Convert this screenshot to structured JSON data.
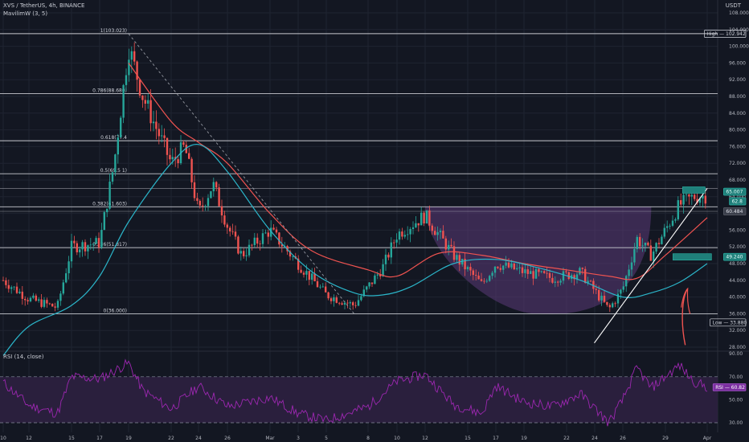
{
  "header": {
    "symbol": "XVS / TetherUS, 4h, BINANCE",
    "ma_legend": "MavilimW (3, 5)",
    "rsi_legend": "RSI (14, close)",
    "currency": "USDT"
  },
  "colors": {
    "background": "#131722",
    "grid": "#1f2431",
    "up_candle": "#26a69a",
    "down_candle": "#ef5350",
    "ma_red": "#ef5350",
    "ma_teal": "#2bb5c9",
    "rsi_line": "#9c27b0",
    "rsi_band": "#2a1f3d",
    "cup_fill": "#5b3a78",
    "fib_line": "#c7c9cf",
    "trend_line": "#ffffff",
    "arrow": "#ef5350"
  },
  "chart_data": [
    {
      "type": "candlestick",
      "title": "XVS / TetherUS, 4h, BINANCE",
      "y_unit": "USDT",
      "ylim": [
        28,
        108
      ],
      "y_ticks": [
        28,
        32,
        36,
        40,
        44,
        48,
        52,
        56,
        60,
        64,
        68,
        72,
        76,
        80,
        84,
        88,
        92,
        96,
        100,
        104,
        108
      ],
      "x_ticks": [
        "10",
        "12",
        "15",
        "17",
        "19",
        "22",
        "24",
        "26",
        "Mar",
        "3",
        "5",
        "8",
        "10",
        "12",
        "15",
        "17",
        "19",
        "22",
        "24",
        "26",
        "29",
        "Apr"
      ],
      "grid": true,
      "approximate_close_path": [
        {
          "date": "Feb 10",
          "close": 44.0
        },
        {
          "date": "Feb 12",
          "close": 39.5
        },
        {
          "date": "Feb 14",
          "close": 37.5
        },
        {
          "date": "Feb 15",
          "close": 52.0
        },
        {
          "date": "Feb 17",
          "close": 53.0
        },
        {
          "date": "Feb 18",
          "close": 72.0
        },
        {
          "date": "Feb 19",
          "close": 100.0
        },
        {
          "date": "Feb 20",
          "close": 88.0
        },
        {
          "date": "Feb 22",
          "close": 72.0
        },
        {
          "date": "Feb 23",
          "close": 76.0
        },
        {
          "date": "Feb 24",
          "close": 60.0
        },
        {
          "date": "Feb 25",
          "close": 67.0
        },
        {
          "date": "Feb 26",
          "close": 57.0
        },
        {
          "date": "Feb 27",
          "close": 50.0
        },
        {
          "date": "Mar 1",
          "close": 56.0
        },
        {
          "date": "Mar 3",
          "close": 48.0
        },
        {
          "date": "Mar 5",
          "close": 40.5
        },
        {
          "date": "Mar 7",
          "close": 38.0
        },
        {
          "date": "Mar 9",
          "close": 47.0
        },
        {
          "date": "Mar 10",
          "close": 55.0
        },
        {
          "date": "Mar 12",
          "close": 59.5
        },
        {
          "date": "Mar 14",
          "close": 50.0
        },
        {
          "date": "Mar 16",
          "close": 43.0
        },
        {
          "date": "Mar 17",
          "close": 48.0
        },
        {
          "date": "Mar 19",
          "close": 46.0
        },
        {
          "date": "Mar 21",
          "close": 44.5
        },
        {
          "date": "Mar 23",
          "close": 46.0
        },
        {
          "date": "Mar 25",
          "close": 37.0
        },
        {
          "date": "Mar 26",
          "close": 42.0
        },
        {
          "date": "Mar 27",
          "close": 54.0
        },
        {
          "date": "Mar 28",
          "close": 50.0
        },
        {
          "date": "Mar 30",
          "close": 62.0
        },
        {
          "date": "Mar 31",
          "close": 64.0
        },
        {
          "date": "Apr 1",
          "close": 64.3
        }
      ],
      "fib_levels": [
        {
          "ratio": "1",
          "price": 103.023,
          "label": "1(103.023)"
        },
        {
          "ratio": "0.786",
          "price": 88.68,
          "label": "0.786(88.680)"
        },
        {
          "ratio": "0.618",
          "price": 77.4,
          "label": "0.618(77.4"
        },
        {
          "ratio": "0.5",
          "price": 69.5,
          "label": "0.5(69.5 1)"
        },
        {
          "ratio": "0.382",
          "price": 61.603,
          "label": "0.382(61.603)"
        },
        {
          "ratio": "0.236",
          "price": 51.817,
          "label": "0.236(51.817)"
        },
        {
          "ratio": "0",
          "price": 36.0,
          "label": "0(36.000)"
        }
      ],
      "extra_levels": [
        66.0,
        60.5
      ],
      "price_tags": [
        {
          "label": "High",
          "value": "102.942",
          "price": 103.0,
          "style": "outline"
        },
        {
          "label": "",
          "value": "65.007",
          "price": 65.2,
          "style": "teal"
        },
        {
          "label": "",
          "value": "62.8",
          "price": 62.9,
          "style": "teal"
        },
        {
          "label": "",
          "value": "60.484",
          "price": 60.5,
          "style": "gray"
        },
        {
          "label": "",
          "value": "49.240",
          "price": 49.6,
          "style": "teal"
        },
        {
          "label": "Low",
          "value": "33.880",
          "price": 33.9,
          "style": "outline"
        }
      ],
      "ma_red_path": [
        {
          "date": "Feb 19",
          "value": 96.0
        },
        {
          "date": "Feb 22",
          "value": 82.0
        },
        {
          "date": "Feb 24",
          "value": 77.0
        },
        {
          "date": "Feb 26",
          "value": 72.0
        },
        {
          "date": "Mar 1",
          "value": 60.0
        },
        {
          "date": "Mar 4",
          "value": 51.0
        },
        {
          "date": "Mar 8",
          "value": 46.5
        },
        {
          "date": "Mar 10",
          "value": 45.0
        },
        {
          "date": "Mar 13",
          "value": 50.5
        },
        {
          "date": "Mar 16",
          "value": 50.0
        },
        {
          "date": "Mar 19",
          "value": 48.0
        },
        {
          "date": "Mar 22",
          "value": 46.5
        },
        {
          "date": "Mar 25",
          "value": 45.0
        },
        {
          "date": "Mar 27",
          "value": 44.5
        },
        {
          "date": "Mar 29",
          "value": 50.0
        },
        {
          "date": "Apr 1",
          "value": 59.0
        }
      ],
      "ma_teal_path": [
        {
          "date": "Feb 10",
          "value": 26.0
        },
        {
          "date": "Feb 12",
          "value": 33.0
        },
        {
          "date": "Feb 15",
          "value": 38.0
        },
        {
          "date": "Feb 17",
          "value": 45.0
        },
        {
          "date": "Feb 19",
          "value": 58.0
        },
        {
          "date": "Feb 22",
          "value": 72.0
        },
        {
          "date": "Feb 24",
          "value": 76.5
        },
        {
          "date": "Feb 26",
          "value": 70.0
        },
        {
          "date": "Mar 1",
          "value": 56.0
        },
        {
          "date": "Mar 4",
          "value": 46.0
        },
        {
          "date": "Mar 7",
          "value": 41.0
        },
        {
          "date": "Mar 9",
          "value": 40.5
        },
        {
          "date": "Mar 11",
          "value": 42.5
        },
        {
          "date": "Mar 14",
          "value": 48.0
        },
        {
          "date": "Mar 17",
          "value": 49.0
        },
        {
          "date": "Mar 20",
          "value": 47.0
        },
        {
          "date": "Mar 23",
          "value": 44.0
        },
        {
          "date": "Mar 26",
          "value": 40.0
        },
        {
          "date": "Mar 28",
          "value": 41.0
        },
        {
          "date": "Mar 30",
          "value": 43.5
        },
        {
          "date": "Apr 1",
          "value": 48.0
        }
      ],
      "cup_pattern": {
        "start": "Mar 12",
        "end": "Mar 28",
        "rim": 61.6,
        "bottom": 36.0
      },
      "descending_trendline": {
        "from": {
          "date": "Feb 19",
          "price": 103.0
        },
        "to": {
          "date": "Mar 7",
          "price": 36.0
        }
      },
      "ascending_trendline": {
        "from": {
          "date": "Mar 25",
          "price": 29.0
        },
        "to": {
          "date": "Apr 1",
          "price": 66.0
        }
      }
    },
    {
      "type": "line",
      "title": "RSI (14, close)",
      "ylim": [
        20,
        90
      ],
      "y_ticks": [
        30,
        50,
        70,
        90
      ],
      "y_tick_labels": [
        "30.00",
        "50.00",
        "70.00",
        "90.00"
      ],
      "band": [
        30,
        70
      ],
      "series": [
        {
          "name": "RSI",
          "approximate_path": [
            {
              "date": "Feb 10",
              "value": 65
            },
            {
              "date": "Feb 12",
              "value": 45
            },
            {
              "date": "Feb 14",
              "value": 38
            },
            {
              "date": "Feb 15",
              "value": 70
            },
            {
              "date": "Feb 17",
              "value": 68
            },
            {
              "date": "Feb 19",
              "value": 82
            },
            {
              "date": "Feb 20",
              "value": 58
            },
            {
              "date": "Feb 22",
              "value": 42
            },
            {
              "date": "Feb 24",
              "value": 62
            },
            {
              "date": "Feb 26",
              "value": 44
            },
            {
              "date": "Mar 1",
              "value": 52
            },
            {
              "date": "Mar 3",
              "value": 38
            },
            {
              "date": "Mar 5",
              "value": 32
            },
            {
              "date": "Mar 8",
              "value": 44
            },
            {
              "date": "Mar 10",
              "value": 66
            },
            {
              "date": "Mar 12",
              "value": 72
            },
            {
              "date": "Mar 14",
              "value": 46
            },
            {
              "date": "Mar 16",
              "value": 38
            },
            {
              "date": "Mar 17",
              "value": 62
            },
            {
              "date": "Mar 19",
              "value": 48
            },
            {
              "date": "Mar 21",
              "value": 44
            },
            {
              "date": "Mar 23",
              "value": 55
            },
            {
              "date": "Mar 25",
              "value": 30
            },
            {
              "date": "Mar 26",
              "value": 50
            },
            {
              "date": "Mar 27",
              "value": 78
            },
            {
              "date": "Mar 28",
              "value": 60
            },
            {
              "date": "Mar 30",
              "value": 80
            },
            {
              "date": "Mar 31",
              "value": 66
            },
            {
              "date": "Apr 1",
              "value": 60.82
            }
          ]
        }
      ],
      "current_value_label": "RSI",
      "current_value": "60.82"
    }
  ]
}
